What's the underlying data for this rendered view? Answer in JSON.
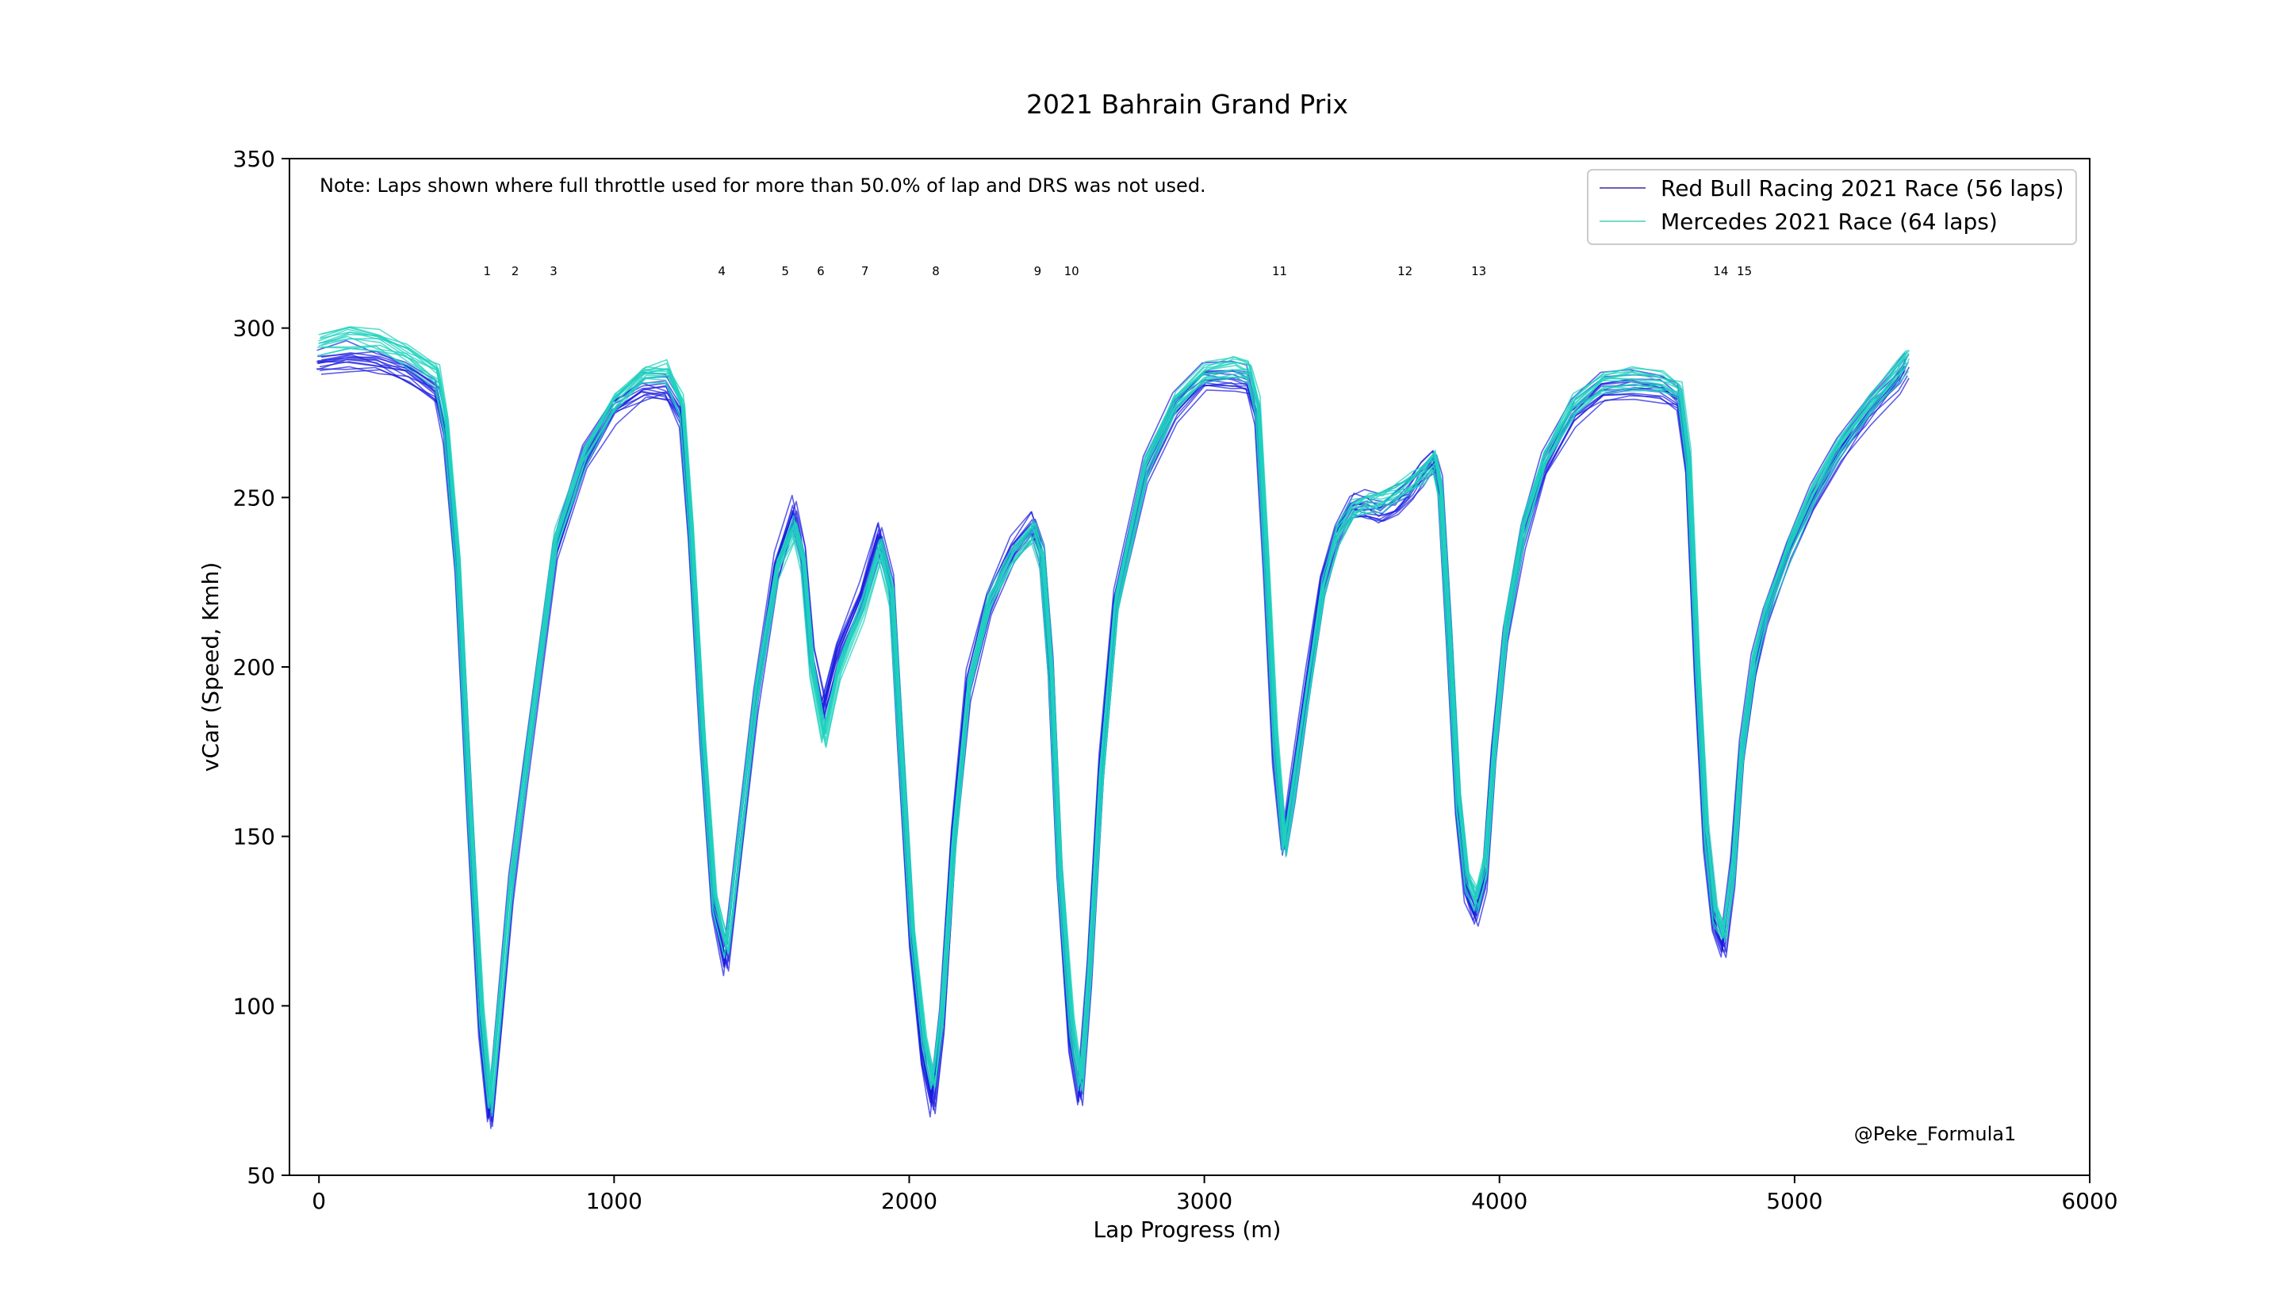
{
  "chart_data": {
    "type": "line",
    "title": "2021 Bahrain Grand Prix",
    "xlabel": "Lap Progress (m)",
    "ylabel": "vCar (Speed, Kmh)",
    "xlim": [
      -100,
      6000
    ],
    "ylim": [
      50,
      350
    ],
    "xticks": [
      0,
      1000,
      2000,
      3000,
      4000,
      5000,
      6000
    ],
    "yticks": [
      50,
      100,
      150,
      200,
      250,
      300,
      350
    ],
    "grid": false,
    "legend_position": "top-right",
    "note": "Note: Laps shown where full throttle used for more than 50.0% of lap and DRS was not used.",
    "watermark": "@Peke_Formula1",
    "corners": [
      {
        "label": "1",
        "x": 570
      },
      {
        "label": "2",
        "x": 665
      },
      {
        "label": "3",
        "x": 795
      },
      {
        "label": "4",
        "x": 1365
      },
      {
        "label": "5",
        "x": 1580
      },
      {
        "label": "6",
        "x": 1700
      },
      {
        "label": "7",
        "x": 1850
      },
      {
        "label": "8",
        "x": 2090
      },
      {
        "label": "9",
        "x": 2435
      },
      {
        "label": "10",
        "x": 2550
      },
      {
        "label": "11",
        "x": 3255
      },
      {
        "label": "12",
        "x": 3680
      },
      {
        "label": "13",
        "x": 3930
      },
      {
        "label": "14",
        "x": 4750
      },
      {
        "label": "15",
        "x": 4830
      }
    ],
    "series": [
      {
        "name": "Red Bull Racing 2021 Race (56 laps)",
        "color": "#1a1adf",
        "legend_color": "#6a5fb8",
        "laps": 56,
        "x": [
          0,
          100,
          200,
          300,
          400,
          430,
          470,
          510,
          550,
          580,
          610,
          650,
          700,
          800,
          900,
          1000,
          1100,
          1180,
          1230,
          1260,
          1300,
          1340,
          1380,
          1420,
          1480,
          1550,
          1610,
          1640,
          1670,
          1710,
          1760,
          1840,
          1900,
          1940,
          1970,
          2010,
          2050,
          2080,
          2110,
          2150,
          2200,
          2270,
          2350,
          2420,
          2450,
          2480,
          2510,
          2550,
          2580,
          2610,
          2650,
          2700,
          2800,
          2900,
          3000,
          3100,
          3150,
          3180,
          3210,
          3240,
          3270,
          3300,
          3350,
          3400,
          3450,
          3500,
          3550,
          3600,
          3650,
          3700,
          3740,
          3780,
          3800,
          3830,
          3860,
          3890,
          3920,
          3950,
          3980,
          4020,
          4080,
          4150,
          4250,
          4350,
          4450,
          4550,
          4610,
          4640,
          4670,
          4700,
          4730,
          4760,
          4790,
          4820,
          4860,
          4900,
          4980,
          5060,
          5150,
          5250,
          5350,
          5380
        ],
        "values": [
          291,
          292,
          291,
          288,
          282,
          270,
          230,
          160,
          95,
          68,
          95,
          135,
          170,
          235,
          262,
          277,
          283,
          283,
          275,
          240,
          180,
          130,
          113,
          145,
          190,
          230,
          247,
          235,
          205,
          188,
          205,
          222,
          240,
          225,
          180,
          120,
          85,
          72,
          95,
          150,
          195,
          220,
          235,
          243,
          235,
          200,
          140,
          90,
          75,
          110,
          170,
          220,
          258,
          277,
          286,
          286,
          285,
          275,
          230,
          175,
          148,
          165,
          195,
          225,
          240,
          248,
          248,
          247,
          249,
          253,
          258,
          262,
          255,
          210,
          160,
          135,
          128,
          138,
          175,
          210,
          240,
          260,
          276,
          283,
          284,
          283,
          280,
          260,
          200,
          150,
          125,
          118,
          140,
          175,
          200,
          215,
          235,
          250,
          264,
          276,
          286,
          290
        ]
      },
      {
        "name": "Mercedes 2021 Race (64 laps)",
        "color": "#1fd1bd",
        "legend_color": "#74dcc8",
        "laps": 64,
        "x": [
          0,
          100,
          200,
          300,
          400,
          430,
          470,
          510,
          550,
          580,
          610,
          650,
          700,
          800,
          900,
          1000,
          1100,
          1180,
          1230,
          1260,
          1300,
          1340,
          1380,
          1420,
          1480,
          1550,
          1610,
          1640,
          1670,
          1710,
          1760,
          1840,
          1900,
          1940,
          1970,
          2010,
          2050,
          2080,
          2110,
          2150,
          2200,
          2270,
          2350,
          2420,
          2450,
          2480,
          2510,
          2550,
          2580,
          2610,
          2650,
          2700,
          2800,
          2900,
          3000,
          3100,
          3150,
          3180,
          3210,
          3240,
          3270,
          3300,
          3350,
          3400,
          3450,
          3500,
          3550,
          3600,
          3650,
          3700,
          3740,
          3780,
          3800,
          3830,
          3860,
          3890,
          3920,
          3950,
          3980,
          4020,
          4080,
          4150,
          4250,
          4350,
          4450,
          4550,
          4610,
          4640,
          4670,
          4700,
          4730,
          4760,
          4790,
          4820,
          4860,
          4900,
          4980,
          5060,
          5150,
          5250,
          5350,
          5380
        ],
        "values": [
          296,
          298,
          297,
          293,
          287,
          272,
          232,
          160,
          98,
          72,
          100,
          138,
          172,
          238,
          264,
          279,
          287,
          288,
          278,
          242,
          180,
          132,
          118,
          148,
          193,
          230,
          242,
          232,
          200,
          180,
          200,
          218,
          236,
          222,
          178,
          122,
          90,
          78,
          100,
          150,
          195,
          220,
          234,
          241,
          233,
          198,
          140,
          95,
          78,
          112,
          170,
          220,
          260,
          279,
          288,
          289,
          288,
          278,
          232,
          180,
          148,
          165,
          195,
          224,
          240,
          247,
          249,
          250,
          252,
          255,
          258,
          262,
          252,
          208,
          160,
          138,
          132,
          142,
          176,
          212,
          242,
          262,
          278,
          285,
          286,
          285,
          282,
          262,
          202,
          152,
          128,
          122,
          142,
          177,
          202,
          217,
          236,
          252,
          266,
          278,
          288,
          292
        ]
      }
    ]
  }
}
